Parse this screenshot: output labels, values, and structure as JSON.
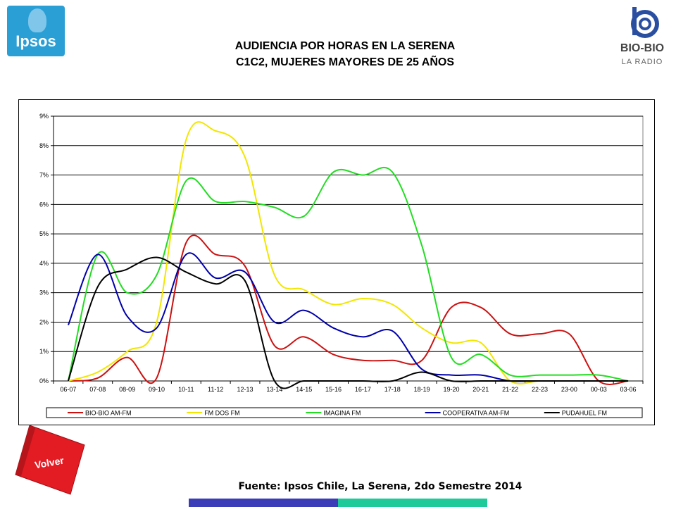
{
  "header": {
    "title_line1": "AUDIENCIA POR HORAS EN LA SERENA",
    "title_line2": "C1C2, MUJERES MAYORES DE 25 AÑOS"
  },
  "logos": {
    "ipsos": "Ipsos",
    "biobio_line1": "BIO-BIO",
    "biobio_line2": "LA RADIO"
  },
  "footer": {
    "source": "Fuente: Ipsos Chile, La Serena, 2do Semestre 2014",
    "volver_label": "Volver"
  },
  "colors": {
    "bar_left": "#3a3cb8",
    "bar_right": "#1ec99a",
    "volver": "#e31b23"
  },
  "chart_data": {
    "type": "line",
    "categories": [
      "06-07",
      "07-08",
      "08-09",
      "09-10",
      "10-11",
      "11-12",
      "12-13",
      "13-14",
      "14-15",
      "15-16",
      "16-17",
      "17-18",
      "18-19",
      "19-20",
      "20-21",
      "21-22",
      "22-23",
      "23-00",
      "00-03",
      "03-06"
    ],
    "y_ticks": [
      "0%",
      "1%",
      "2%",
      "3%",
      "4%",
      "5%",
      "6%",
      "7%",
      "8%",
      "9%"
    ],
    "ylim": [
      0,
      9
    ],
    "grid": "horizontal",
    "legend_position": "bottom",
    "series": [
      {
        "name": "BIO-BIO AM-FM",
        "color": "#cc1111",
        "values": [
          0,
          0.1,
          0.8,
          0.1,
          4.7,
          4.3,
          3.9,
          1.2,
          1.5,
          0.9,
          0.7,
          0.7,
          0.7,
          2.5,
          2.5,
          1.6,
          1.6,
          1.6,
          0,
          0
        ]
      },
      {
        "name": "FM DOS FM",
        "color": "#f2e600",
        "values": [
          0,
          0.3,
          1.0,
          2.0,
          8.2,
          8.5,
          7.6,
          3.6,
          3.1,
          2.6,
          2.8,
          2.6,
          1.8,
          1.3,
          1.3,
          0,
          0,
          0,
          0,
          0
        ]
      },
      {
        "name": "IMAGINA FM",
        "color": "#22dd22",
        "values": [
          0,
          4.3,
          3.0,
          3.6,
          6.8,
          6.1,
          6.1,
          5.9,
          5.6,
          7.1,
          7.0,
          7.1,
          4.6,
          0.8,
          0.9,
          0.2,
          0.2,
          0.2,
          0.2,
          0
        ]
      },
      {
        "name": "COOPERATIVA AM-FM",
        "color": "#0000aa",
        "values": [
          1.9,
          4.3,
          2.2,
          1.8,
          4.3,
          3.5,
          3.7,
          2.0,
          2.4,
          1.8,
          1.5,
          1.7,
          0.4,
          0.2,
          0.2,
          0,
          0,
          0,
          0,
          0
        ]
      },
      {
        "name": "PUDAHUEL FM",
        "color": "#000000",
        "values": [
          0,
          3.2,
          3.8,
          4.2,
          3.7,
          3.3,
          3.4,
          0,
          0,
          0,
          0,
          0,
          0.3,
          0,
          0,
          0,
          0,
          0,
          0,
          0
        ]
      }
    ]
  }
}
